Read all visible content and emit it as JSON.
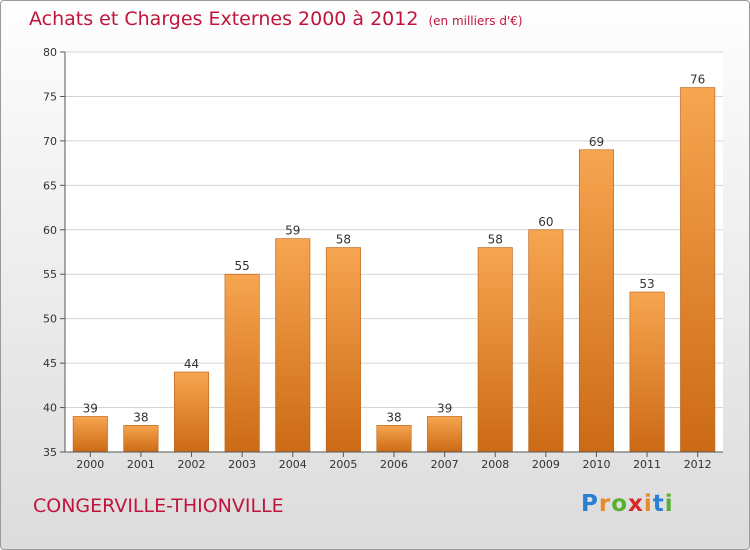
{
  "header": {
    "title": "Achats et Charges Externes 2000 à 2012",
    "unit": "(en milliers d'€)"
  },
  "footer": {
    "city": "CONGERVILLE-THIONVILLE",
    "logo_letters": [
      "P",
      "r",
      "o",
      "x",
      "i",
      "t",
      "i"
    ],
    "logo_colors": [
      "#2a7fd4",
      "#e8892b",
      "#58b030",
      "#d92828",
      "#e8892b",
      "#2a7fd4",
      "#58b030"
    ]
  },
  "colors": {
    "bar_top": "#f7a550",
    "bar_bottom": "#cc6a16",
    "title": "#c0143c",
    "grid": "#d4d4d4"
  },
  "chart_data": {
    "type": "bar",
    "categories": [
      "2000",
      "2001",
      "2002",
      "2003",
      "2004",
      "2005",
      "2006",
      "2007",
      "2008",
      "2009",
      "2010",
      "2011",
      "2012"
    ],
    "values": [
      39,
      38,
      44,
      55,
      59,
      58,
      38,
      39,
      58,
      60,
      69,
      53,
      76
    ],
    "title": "Achats et Charges Externes 2000 à 2012",
    "xlabel": "",
    "ylabel": "",
    "ylim": [
      35,
      80
    ],
    "yticks": [
      35,
      40,
      45,
      50,
      55,
      60,
      65,
      70,
      75,
      80
    ],
    "grid": true,
    "legend": "none"
  }
}
